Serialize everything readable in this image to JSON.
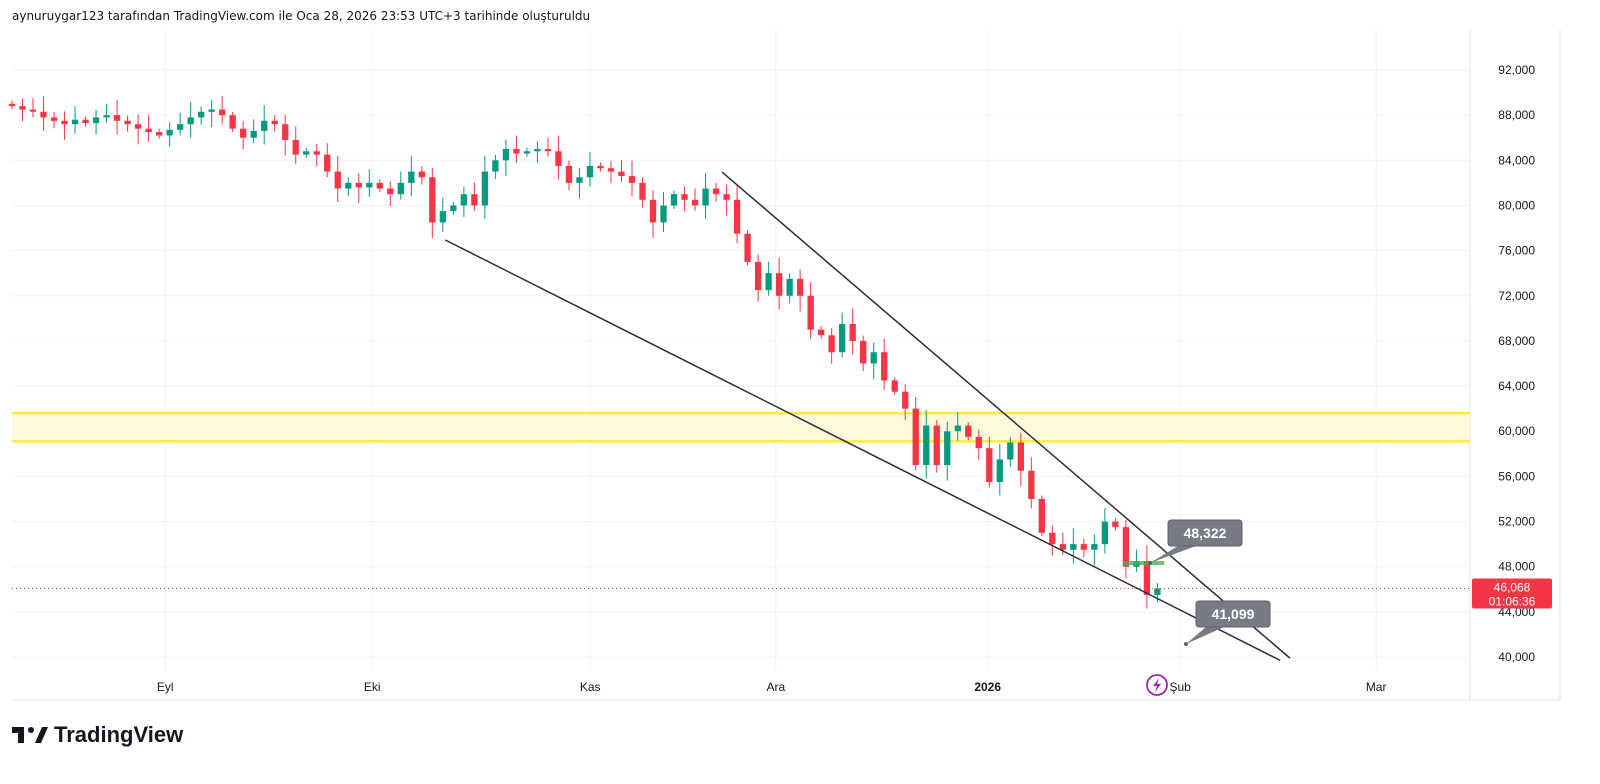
{
  "header": {
    "caption": "aynuruygar123 tarafından TradingView.com ile Oca 28, 2026 23:53 UTC+3 tarihinde oluşturuldu"
  },
  "brand": {
    "name": "TradingView"
  },
  "colors": {
    "up": "#089981",
    "down": "#f23645",
    "zone": "#ffeb3b",
    "line": "#2a2e39",
    "callout": "#787b86"
  },
  "chart_data": {
    "type": "candlestick",
    "last_day_index": 166,
    "closes": [
      88800,
      88500,
      88300,
      87800,
      87500,
      87200,
      87600,
      87300,
      87800,
      88000,
      87500,
      87200,
      86800,
      86500,
      86200,
      86700,
      87200,
      87800,
      88300,
      88500,
      88000,
      86800,
      86000,
      86600,
      87500,
      87200,
      85800,
      84500,
      84800,
      84500,
      83000,
      81500,
      82000,
      81600,
      82000,
      81500,
      81000,
      82000,
      83000,
      82500,
      78500,
      79500,
      80000,
      81000,
      80000,
      83000,
      84000,
      85000,
      84600,
      84800,
      85000,
      84800,
      83500,
      82000,
      82500,
      83500,
      83300,
      83000,
      82600,
      82000,
      80500,
      78500,
      80000,
      81000,
      80500,
      80000,
      81500,
      81000,
      80500,
      77500,
      75000,
      72500,
      74000,
      72000,
      73500,
      72000,
      69000,
      68500,
      67000,
      69500,
      68000,
      66000,
      67000,
      64500,
      63500,
      62000,
      57000,
      60500,
      57000,
      60000,
      60500,
      59500,
      58500,
      55500,
      57500,
      59000,
      56500,
      54000,
      51000,
      50000,
      49500,
      50000,
      49500,
      50000,
      52000,
      51500,
      48000,
      48500,
      45500,
      46068
    ],
    "y_ticks": [
      "92,000",
      "88,000",
      "84,000",
      "80,000",
      "76,000",
      "72,000",
      "68,000",
      "64,000",
      "60,000",
      "56,000",
      "52,000",
      "48,000",
      "44,000",
      "40,000"
    ],
    "ylim": [
      38500,
      95000
    ],
    "x_ticks": [
      {
        "label": "Eyl",
        "day": 22.2
      },
      {
        "label": "Eki",
        "day": 52.2
      },
      {
        "label": "Kas",
        "day": 83.8
      },
      {
        "label": "Ara",
        "day": 110.7
      },
      {
        "label": "2026",
        "day": 141.4,
        "bold": true
      },
      {
        "label": "Şub",
        "day": 169.3
      },
      {
        "label": "Mar",
        "day": 197.7
      }
    ],
    "xlim_days": [
      0,
      211.3
    ],
    "trend_lines": [
      {
        "from": {
          "day": 62.8,
          "price": 76940
        },
        "to": {
          "day": 183.8,
          "price": 39700
        }
      },
      {
        "from": {
          "day": 102.9,
          "price": 82960
        },
        "to": {
          "day": 185.2,
          "price": 39900
        }
      }
    ],
    "zone": {
      "top": 61600,
      "bottom": 59100
    },
    "current_price": {
      "label": "46,068",
      "countdown": "01:06:36",
      "value": 46068
    },
    "callouts": [
      {
        "label": "48,322",
        "price": 48322,
        "day": 166
      },
      {
        "label": "41,099",
        "price": 41099,
        "day": 170
      }
    ]
  }
}
